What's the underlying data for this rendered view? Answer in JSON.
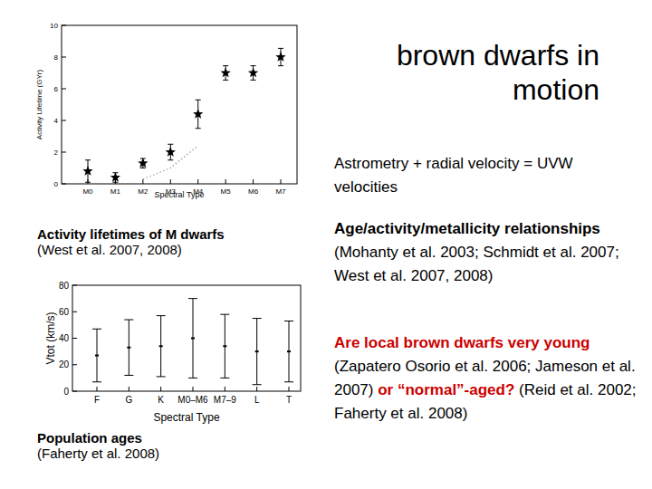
{
  "slide": {
    "title": [
      "brown dwarfs in",
      "motion"
    ],
    "bullets": [
      {
        "parts": [
          {
            "text": "Astrometry + radial velocity = UVW velocities",
            "bold": false,
            "color": "#000000"
          }
        ]
      },
      {
        "parts": [
          {
            "text": "Age/activity/metallicity relationships",
            "bold": true,
            "color": "#000000"
          },
          {
            "text": " (Mohanty et al. 2003; Schmidt et al. 2007; West et al. 2007, 2008)",
            "bold": false,
            "color": "#000000"
          }
        ]
      },
      {
        "parts": [
          {
            "text": "Are local brown dwarfs very young",
            "bold": true,
            "color": "#cc0000"
          },
          {
            "text": " (Zapatero Osorio et al. 2006; Jameson et al. 2007) ",
            "bold": false,
            "color": "#000000"
          },
          {
            "text": "or “normal”-aged?",
            "bold": true,
            "color": "#cc0000"
          },
          {
            "text": " (Reid et al. 2002; Faherty et al. 2008)",
            "bold": false,
            "color": "#000000"
          }
        ]
      }
    ],
    "captions": [
      {
        "title": "Activity lifetimes of M dwarfs",
        "source": "(West et al. 2007, 2008)"
      },
      {
        "title": "Population ages",
        "source": "(Faherty et al. 2008)"
      }
    ]
  },
  "chart_data": [
    {
      "type": "scatter",
      "x_label": "Spectral Type",
      "y_label": "Activity Lifetime (GYr)",
      "categories": [
        "M0",
        "M1",
        "M2",
        "M3",
        "M4",
        "M5",
        "M6",
        "M7"
      ],
      "series": [
        {
          "type": "scatter",
          "marker": "star",
          "color": "#000000",
          "values": [
            0.8,
            0.4,
            1.3,
            2.0,
            4.4,
            7.0,
            7.0,
            8.0
          ],
          "errors": [
            0.7,
            0.3,
            0.3,
            0.5,
            0.9,
            0.45,
            0.45,
            0.55
          ]
        },
        {
          "type": "line",
          "line_style": "dotted",
          "color": "#999999",
          "values": [
            null,
            null,
            0.3,
            1.0,
            2.4,
            null,
            null,
            null
          ]
        }
      ],
      "ylim": [
        0,
        10
      ],
      "yticks": [
        0,
        2,
        4,
        6,
        8,
        10
      ],
      "grid": false
    },
    {
      "type": "scatter",
      "x_label": "Spectral Type",
      "y_label": "Vtot (km/s)",
      "categories": [
        "F",
        "G",
        "K",
        "M0–M6",
        "M7–9",
        "L",
        "T"
      ],
      "series": [
        {
          "type": "scatter",
          "marker": "dash",
          "color": "#000000",
          "values": [
            27,
            33,
            34,
            40,
            34,
            30,
            30
          ],
          "errors": [
            20,
            21,
            23,
            30,
            24,
            25,
            23
          ]
        }
      ],
      "ylim": [
        0,
        80
      ],
      "yticks": [
        0,
        20,
        40,
        60,
        80
      ],
      "grid": false
    }
  ]
}
